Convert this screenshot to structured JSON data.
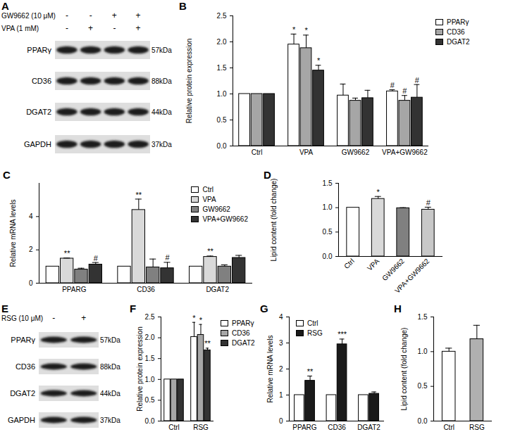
{
  "blots": [
    {
      "title": "A",
      "treatments": [
        {
          "label": "GW9662 (10 μM)",
          "signs": [
            "-",
            "-",
            "+",
            "+"
          ]
        },
        {
          "label": "VPA (1 mM)",
          "signs": [
            "-",
            "+",
            "-",
            "+"
          ]
        }
      ],
      "proteins": [
        {
          "name": "PPARγ",
          "size": "57kDa"
        },
        {
          "name": "CD36",
          "size": "88kDa"
        },
        {
          "name": "DGAT2",
          "size": "44kDa"
        },
        {
          "name": "GAPDH",
          "size": "37kDa"
        }
      ]
    },
    {
      "title": "E",
      "treatments": [
        {
          "label": "RSG (10 μM)",
          "signs": [
            "-",
            "+"
          ]
        }
      ],
      "proteins": [
        {
          "name": "PPARγ",
          "size": "57kDa"
        },
        {
          "name": "CD36",
          "size": "88kDa"
        },
        {
          "name": "DGAT2",
          "size": "44kDa"
        },
        {
          "name": "GAPDH",
          "size": "37kDa"
        }
      ]
    }
  ],
  "chart_data": [
    {
      "title": "B",
      "type": "bar",
      "y_label": "Relative protein expression",
      "categories": [
        "Ctrl",
        "VPA",
        "GW9662",
        "VPA+GW9662"
      ],
      "series": [
        {
          "name": "PPARγ",
          "color": "#ffffff",
          "values": [
            1,
            1.95,
            0.97,
            1.05
          ],
          "errors": [
            0,
            0.2,
            0.22,
            0.03
          ],
          "significance": [
            null,
            "*",
            null,
            "#"
          ]
        },
        {
          "name": "CD36",
          "color": "#a6a6a6",
          "values": [
            1,
            1.88,
            0.87,
            0.87
          ],
          "errors": [
            0,
            0.25,
            0.05,
            0.1
          ],
          "significance": [
            null,
            "*",
            null,
            "#"
          ]
        },
        {
          "name": "DGAT2",
          "color": "#333333",
          "values": [
            1,
            1.45,
            0.92,
            0.93
          ],
          "errors": [
            0,
            0.1,
            0.15,
            0.25
          ],
          "significance": [
            null,
            "*",
            null,
            "#"
          ]
        }
      ],
      "ylim": [
        0,
        2.5
      ],
      "yticks": [
        {
          "value": 0,
          "label": "0.0"
        },
        {
          "value": 0.5,
          "label": "0.5"
        },
        {
          "value": 1,
          "label": "1.0"
        },
        {
          "value": 1.5,
          "label": "1.5"
        },
        {
          "value": 2,
          "label": "2.0"
        },
        {
          "value": 2.5,
          "label": "2.5"
        }
      ],
      "legend": "right"
    },
    {
      "title": "C",
      "type": "bar",
      "y_label": "Relative mRNA levels",
      "categories": [
        "PPARG",
        "CD36",
        "DGAT2"
      ],
      "series": [
        {
          "name": "Ctrl",
          "color": "#ffffff",
          "values": [
            1,
            1,
            1
          ],
          "errors": [
            0,
            0,
            0
          ]
        },
        {
          "name": "VPA",
          "color": "#d9d9d9",
          "values": [
            1.48,
            4.4,
            1.58
          ],
          "errors": [
            0.03,
            0.65,
            0.05
          ],
          "significance": [
            "**",
            "**",
            "**"
          ]
        },
        {
          "name": "GW9662",
          "color": "#808080",
          "values": [
            0.82,
            0.95,
            1.0
          ],
          "errors": [
            0.08,
            0.5,
            0.1
          ]
        },
        {
          "name": "VPA+GW9662",
          "color": "#333333",
          "values": [
            1.12,
            0.9,
            1.52
          ],
          "errors": [
            0.12,
            0.35,
            0.15
          ],
          "significance": [
            "#",
            "#",
            null
          ]
        }
      ],
      "ylim": [
        0,
        6
      ],
      "yticks": [
        0,
        2,
        4
      ],
      "legend": "top-right"
    },
    {
      "title": "D",
      "type": "bar",
      "y_label": "Lipid content (fold change)",
      "categories": [
        "Ctrl",
        "VPA",
        "GW9662",
        "VPA+GW9662"
      ],
      "values": [
        1,
        1.18,
        0.99,
        0.96
      ],
      "errors": [
        0,
        0.05,
        0.01,
        0.05
      ],
      "significance": [
        null,
        "*",
        null,
        "#"
      ],
      "colors": [
        "#ffffff",
        "#d9d9d9",
        "#808080",
        "#c8c8c8"
      ],
      "ylim": [
        0,
        1.5
      ],
      "yticks": [
        {
          "value": 0,
          "label": "0.0"
        },
        {
          "value": 0.5,
          "label": "0.5"
        },
        {
          "value": 1,
          "label": "1.0"
        },
        {
          "value": 1.5,
          "label": "1.5"
        }
      ]
    },
    {
      "title": "F",
      "type": "bar",
      "y_label": "Relative protein expression",
      "categories": [
        "Ctrl",
        "RSG"
      ],
      "series": [
        {
          "name": "PPARγ",
          "color": "#ffffff",
          "values": [
            1,
            2.02
          ],
          "errors": [
            0,
            0.35
          ],
          "significance": [
            null,
            "*"
          ]
        },
        {
          "name": "CD36",
          "color": "#a6a6a6",
          "values": [
            1,
            2.07
          ],
          "errors": [
            0,
            0.25
          ],
          "significance": [
            null,
            "*"
          ]
        },
        {
          "name": "DGAT2",
          "color": "#333333",
          "values": [
            1,
            1.7
          ],
          "errors": [
            0,
            0.05
          ],
          "significance": [
            null,
            "**"
          ]
        }
      ],
      "ylim": [
        0,
        2.5
      ],
      "yticks": [
        {
          "value": 0,
          "label": "0.0"
        },
        {
          "value": 0.5,
          "label": "0.5"
        },
        {
          "value": 1,
          "label": "1.0"
        },
        {
          "value": 1.5,
          "label": "1.5"
        },
        {
          "value": 2,
          "label": "2.0"
        },
        {
          "value": 2.5,
          "label": "2.5"
        }
      ],
      "legend": "right"
    },
    {
      "title": "G",
      "type": "bar",
      "y_label": "Relative mRNA levels",
      "categories": [
        "PPARG",
        "CD36",
        "DGAT2"
      ],
      "series": [
        {
          "name": "Ctrl",
          "color": "#ffffff",
          "values": [
            1,
            1,
            1
          ],
          "errors": [
            0,
            0,
            0
          ]
        },
        {
          "name": "RSG",
          "color": "#1a1a1a",
          "values": [
            1.55,
            2.95,
            1.05
          ],
          "errors": [
            0.18,
            0.2,
            0.07
          ],
          "significance": [
            "**",
            "***",
            null
          ]
        }
      ],
      "ylim": [
        0,
        4
      ],
      "yticks": [
        0,
        1,
        2,
        3,
        4
      ],
      "legend": "top-left"
    },
    {
      "title": "H",
      "type": "bar",
      "y_label": "Lipid content (fold change)",
      "categories": [
        "Ctrl",
        "RSG"
      ],
      "values": [
        1,
        1.18
      ],
      "errors": [
        0.05,
        0.2
      ],
      "colors": [
        "#ffffff",
        "#b0b0b0"
      ],
      "ylim": [
        0,
        1.5
      ],
      "yticks": [
        {
          "value": 0,
          "label": "0.0"
        },
        {
          "value": 0.5,
          "label": "0.5"
        },
        {
          "value": 1,
          "label": "1.0"
        },
        {
          "value": 1.5,
          "label": "1.5"
        }
      ]
    }
  ]
}
